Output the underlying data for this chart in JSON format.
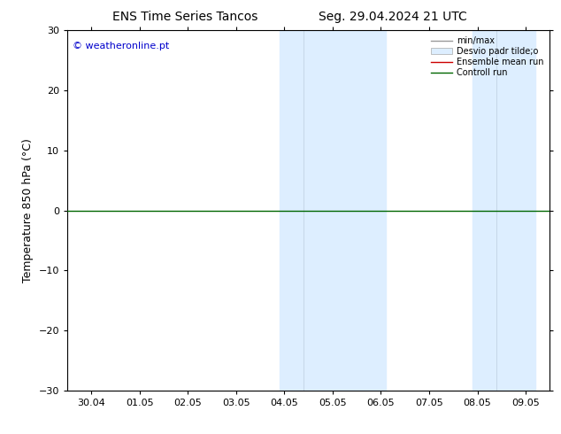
{
  "title_left": "ENS Time Series Tancos",
  "title_right": "Seg. 29.04.2024 21 UTC",
  "ylabel": "Temperature 850 hPa (°C)",
  "watermark": "© weatheronline.pt",
  "watermark_color": "#0000cc",
  "ylim": [
    -30,
    30
  ],
  "yticks": [
    -30,
    -20,
    -10,
    0,
    10,
    20,
    30
  ],
  "xtick_labels": [
    "30.04",
    "01.05",
    "02.05",
    "03.05",
    "04.05",
    "05.05",
    "06.05",
    "07.05",
    "08.05",
    "09.05"
  ],
  "xtick_positions": [
    0,
    1,
    2,
    3,
    4,
    5,
    6,
    7,
    8,
    9
  ],
  "xlim": [
    -0.5,
    9.5
  ],
  "shaded_bands": [
    {
      "x_start": 3.9,
      "x_end": 4.4,
      "color": "#ddeeff"
    },
    {
      "x_start": 4.4,
      "x_end": 6.1,
      "color": "#ddeeff"
    },
    {
      "x_start": 7.9,
      "x_end": 8.4,
      "color": "#ddeeff"
    },
    {
      "x_start": 8.4,
      "x_end": 9.2,
      "color": "#ddeeff"
    }
  ],
  "line_y": 0,
  "line_color": "#006600",
  "line_width": 1.0,
  "ensemble_mean_color": "#cc0000",
  "legend_labels": [
    "min/max",
    "Desvio padr tilde;o",
    "Ensemble mean run",
    "Controll run"
  ],
  "background_color": "#ffffff",
  "plot_bg_color": "#ffffff",
  "font_size": 8,
  "title_font_size": 10
}
